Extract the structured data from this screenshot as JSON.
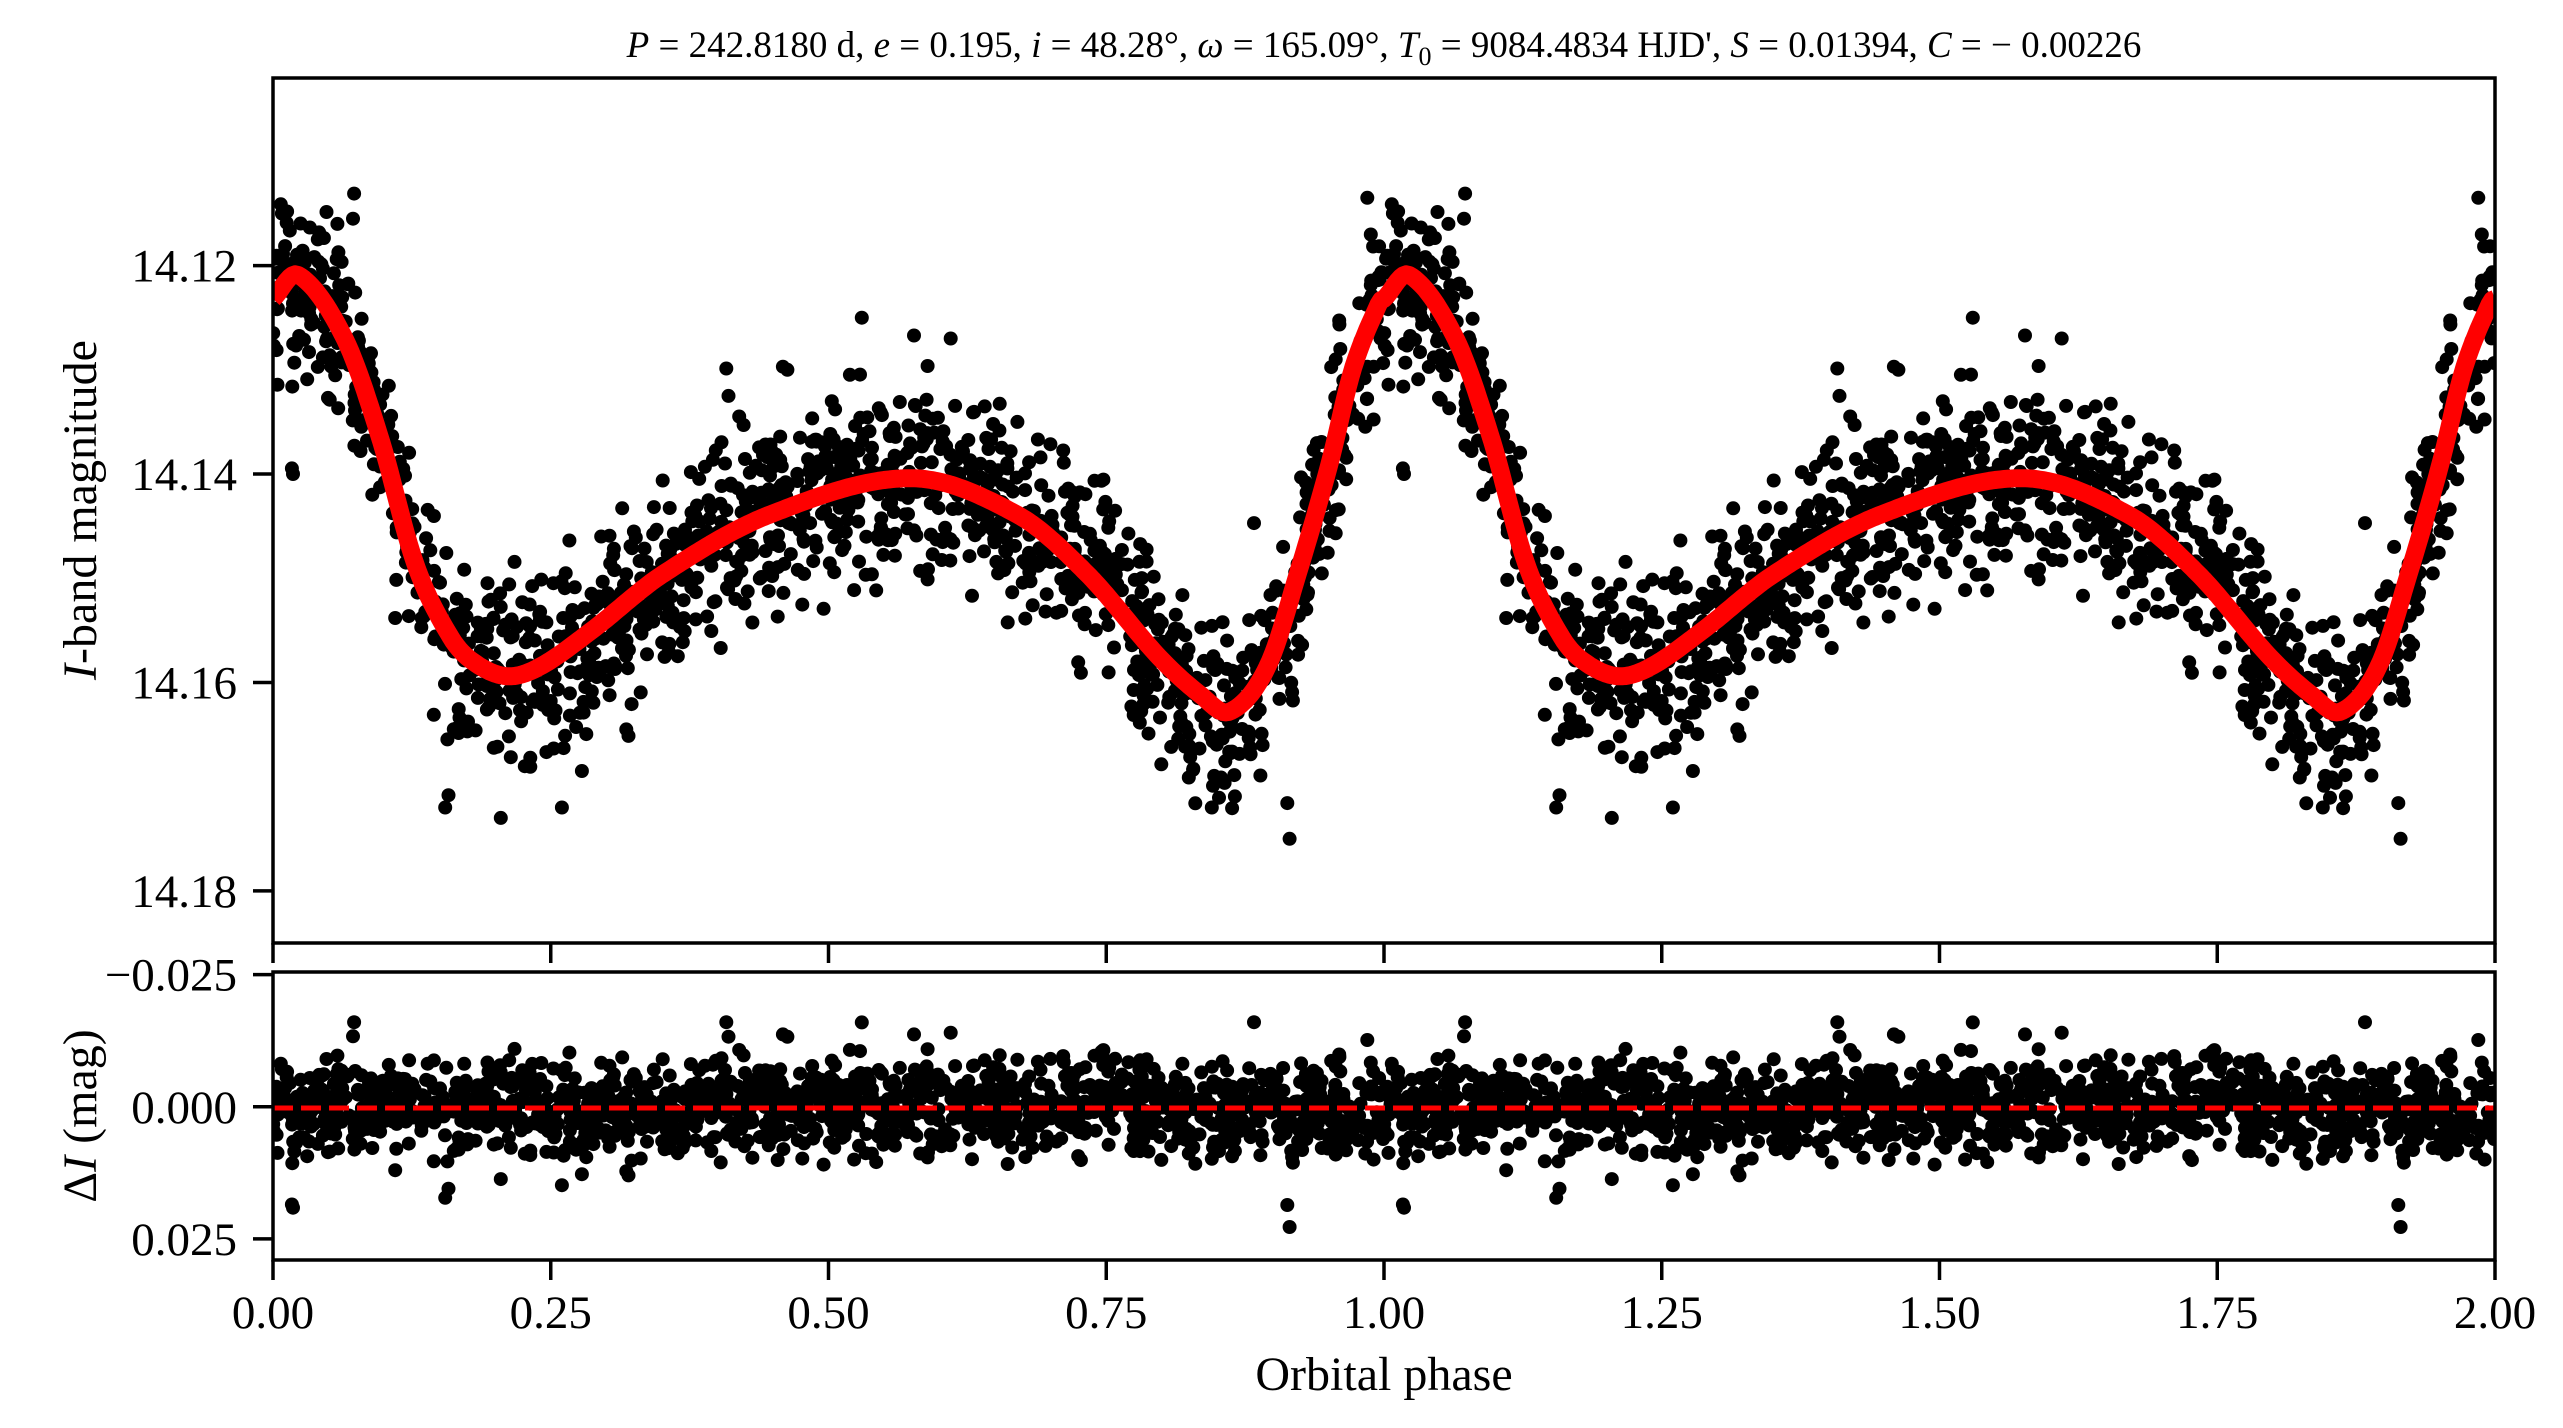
{
  "chart_data": [
    {
      "type": "scatter",
      "panel": "light-curve",
      "title": "P = 242.8180 d, e = 0.195, i = 48.28°, ω = 165.09°, T0 = 9084.4834 HJD', S = 0.01394, C = −0.00226",
      "title_parts": {
        "P_sym": "P",
        "P_val": " = 242.8180 d, ",
        "e_sym": "e",
        "e_val": " = 0.195, ",
        "i_sym": "i",
        "i_val": " = 48.28°, ",
        "w_sym": "ω",
        "w_val": " = 165.09°, ",
        "T_sym": "T",
        "T_sub": "0",
        "T_val": " = 9084.4834 HJD', ",
        "S_sym": "S",
        "S_val": " = 0.01394, ",
        "C_sym": "C",
        "C_val": " = − 0.00226"
      },
      "xlabel": "Orbital phase",
      "ylabel_italic": "I",
      "ylabel_rest": "-band magnitude",
      "xlim": [
        0.0,
        2.0
      ],
      "ylim": [
        14.185,
        14.102
      ],
      "y_inverted": true,
      "xticks": [
        "0.00",
        "0.25",
        "0.50",
        "0.75",
        "1.00",
        "1.25",
        "1.50",
        "1.75",
        "2.00"
      ],
      "xtick_values": [
        0.0,
        0.25,
        0.5,
        0.75,
        1.0,
        1.25,
        1.5,
        1.75,
        2.0
      ],
      "yticks": [
        "14.12",
        "14.14",
        "14.16",
        "14.18"
      ],
      "ytick_values": [
        14.12,
        14.14,
        14.16,
        14.18
      ],
      "grid": false,
      "period_repeated": 2,
      "series": [
        {
          "name": "observations",
          "kind": "scatter",
          "color": "#000000",
          "n_points_per_cycle": 1500,
          "scatter_sigma_mag": 0.0045,
          "note_values": "phase-folded I-band points scattered around the model; the same cycle is repeated at phase+1"
        },
        {
          "name": "model",
          "kind": "line",
          "color": "#ff0000",
          "phase": [
            0.0,
            0.0225,
            0.064,
            0.096,
            0.128,
            0.159,
            0.18,
            0.2105,
            0.24,
            0.287,
            0.351,
            0.447,
            0.574,
            0.67,
            0.733,
            0.797,
            0.835,
            0.861,
            0.895,
            0.924,
            0.951,
            0.972,
            0.996,
            1.0
          ],
          "magnitude": [
            14.1232,
            14.1209,
            14.1269,
            14.1364,
            14.1486,
            14.1555,
            14.158,
            14.1594,
            14.1585,
            14.155,
            14.1496,
            14.1439,
            14.1404,
            14.1439,
            14.1496,
            14.1575,
            14.1612,
            14.1628,
            14.1585,
            14.149,
            14.139,
            14.1299,
            14.1235,
            14.1232
          ]
        }
      ],
      "outliers": [
        {
          "phase": 0.008,
          "mag": 14.115
        },
        {
          "phase": 0.072,
          "mag": 14.1155
        },
        {
          "phase": 0.018,
          "mag": 14.14
        },
        {
          "phase": 0.155,
          "mag": 14.172
        },
        {
          "phase": 0.205,
          "mag": 14.173
        },
        {
          "phase": 0.26,
          "mag": 14.172
        },
        {
          "phase": 0.278,
          "mag": 14.1685
        },
        {
          "phase": 0.318,
          "mag": 14.1645
        },
        {
          "phase": 0.41,
          "mag": 14.1325
        },
        {
          "phase": 0.463,
          "mag": 14.13
        },
        {
          "phase": 0.61,
          "mag": 14.127
        },
        {
          "phase": 0.53,
          "mag": 14.125
        },
        {
          "phase": 0.67,
          "mag": 14.135
        },
        {
          "phase": 0.845,
          "mag": 14.172
        },
        {
          "phase": 0.915,
          "mag": 14.175
        },
        {
          "phase": 0.985,
          "mag": 14.1135
        },
        {
          "phase": 1.058,
          "mag": 14.116
        },
        {
          "phase": 0.94,
          "mag": 14.14
        }
      ]
    },
    {
      "type": "scatter",
      "panel": "residuals",
      "xlabel": "Orbital phase",
      "ylabel_sym": "ΔI",
      "ylabel_delta": "Δ",
      "ylabel_italic": "I",
      "ylabel_rest": " (mag)",
      "xlim": [
        0.0,
        2.0
      ],
      "ylim": [
        0.029,
        -0.0255
      ],
      "y_inverted": true,
      "yticks": [
        "−0.025",
        "0.000",
        "0.025"
      ],
      "ytick_values": [
        -0.025,
        0.0,
        0.025
      ],
      "xticks": [
        "0.00",
        "0.25",
        "0.50",
        "0.75",
        "1.00",
        "1.25",
        "1.50",
        "1.75",
        "2.00"
      ],
      "grid": false,
      "series": [
        {
          "name": "residuals",
          "kind": "scatter",
          "color": "#000000",
          "sigma": 0.0045
        },
        {
          "name": "zero-line",
          "kind": "dashed-line",
          "color": "#ff0000",
          "y": 0.0
        }
      ],
      "outliers": [
        {
          "phase": 0.017,
          "res": 0.0185
        },
        {
          "phase": 0.073,
          "res": -0.016
        },
        {
          "phase": 0.158,
          "res": 0.0155
        },
        {
          "phase": 0.408,
          "res": -0.016
        },
        {
          "phase": 0.459,
          "res": -0.0137
        },
        {
          "phase": 0.577,
          "res": -0.0137
        },
        {
          "phase": 0.883,
          "res": -0.016
        },
        {
          "phase": 0.913,
          "res": 0.0186
        },
        {
          "phase": 0.11,
          "res": 0.012
        },
        {
          "phase": 0.32,
          "res": 0.013
        }
      ]
    }
  ]
}
